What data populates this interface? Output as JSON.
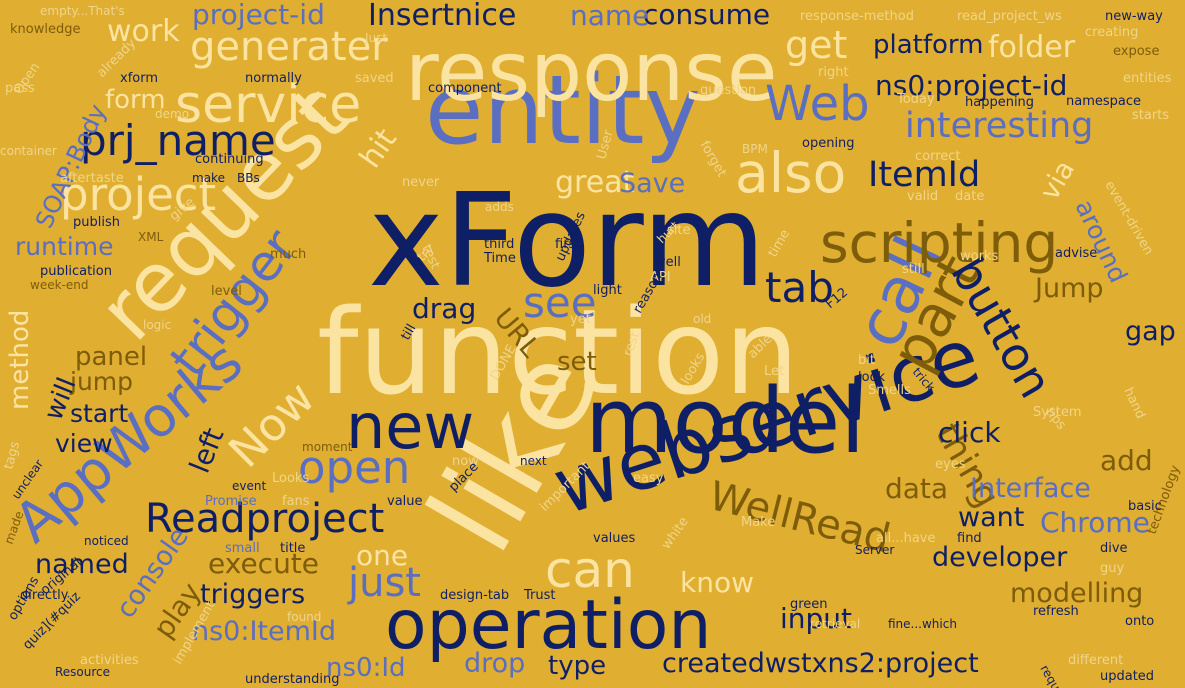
{
  "cloud": {
    "background": "#e0ae31",
    "palette": {
      "navy": "#0f1f66",
      "blue": "#5a6ec2",
      "cream": "#fbe4a1",
      "olive": "#7d5c0a",
      "light": "#f0d58a"
    },
    "words": [
      {
        "t": "xForm",
        "c": "navy"
      },
      {
        "t": "function",
        "c": "cream"
      },
      {
        "t": "entity",
        "c": "blue"
      },
      {
        "t": "response",
        "c": "cream"
      },
      {
        "t": "model",
        "c": "navy"
      },
      {
        "t": "like",
        "c": "cream"
      },
      {
        "t": "webservice",
        "c": "navy"
      },
      {
        "t": "operation",
        "c": "navy"
      },
      {
        "t": "request",
        "c": "cream"
      },
      {
        "t": "AppWorks",
        "c": "blue"
      },
      {
        "t": "service",
        "c": "cream"
      },
      {
        "t": "call",
        "c": "blue"
      },
      {
        "t": "scripting",
        "c": "olive"
      },
      {
        "t": "new",
        "c": "navy"
      },
      {
        "t": "trigger",
        "c": "blue"
      },
      {
        "t": "part",
        "c": "olive"
      },
      {
        "t": "button",
        "c": "navy"
      },
      {
        "t": "Web",
        "c": "blue"
      },
      {
        "t": "also",
        "c": "cream"
      },
      {
        "t": "open",
        "c": "blue"
      },
      {
        "t": "WellRead",
        "c": "olive"
      },
      {
        "t": "Readproject",
        "c": "navy"
      },
      {
        "t": "can",
        "c": "cream"
      },
      {
        "t": "prj_name",
        "c": "navy"
      },
      {
        "t": "project",
        "c": "cream"
      },
      {
        "t": "generater",
        "c": "cream"
      },
      {
        "t": "interesting",
        "c": "blue"
      },
      {
        "t": "ns0:project-id",
        "c": "navy"
      },
      {
        "t": "ItemId",
        "c": "navy"
      },
      {
        "t": "just",
        "c": "blue"
      },
      {
        "t": "Now",
        "c": "cream"
      },
      {
        "t": "tab",
        "c": "navy"
      },
      {
        "t": "see",
        "c": "blue"
      },
      {
        "t": "thing",
        "c": "olive"
      },
      {
        "t": "get",
        "c": "cream"
      },
      {
        "t": "project-id",
        "c": "blue"
      },
      {
        "t": "platform",
        "c": "navy"
      },
      {
        "t": "folder",
        "c": "cream"
      },
      {
        "t": "Insertnice",
        "c": "navy"
      },
      {
        "t": "consume",
        "c": "navy"
      },
      {
        "t": "name",
        "c": "blue"
      },
      {
        "t": "work",
        "c": "cream"
      },
      {
        "t": "form",
        "c": "cream"
      },
      {
        "t": "hit",
        "c": "cream"
      },
      {
        "t": "great",
        "c": "cream"
      },
      {
        "t": "Save",
        "c": "blue"
      },
      {
        "t": "via",
        "c": "cream"
      },
      {
        "t": "around",
        "c": "blue"
      },
      {
        "t": "SOAP:Body",
        "c": "blue"
      },
      {
        "t": "runtime",
        "c": "blue"
      },
      {
        "t": "drag",
        "c": "navy"
      },
      {
        "t": "URL",
        "c": "olive"
      },
      {
        "t": "Jump",
        "c": "olive"
      },
      {
        "t": "gap",
        "c": "navy"
      },
      {
        "t": "panel",
        "c": "olive"
      },
      {
        "t": "set",
        "c": "olive"
      },
      {
        "t": "method",
        "c": "cream"
      },
      {
        "t": "jump",
        "c": "olive"
      },
      {
        "t": "will",
        "c": "navy"
      },
      {
        "t": "start",
        "c": "navy"
      },
      {
        "t": "view",
        "c": "navy"
      },
      {
        "t": "left",
        "c": "navy"
      },
      {
        "t": "click",
        "c": "navy"
      },
      {
        "t": "add",
        "c": "olive"
      },
      {
        "t": "data",
        "c": "olive"
      },
      {
        "t": "Interface",
        "c": "blue"
      },
      {
        "t": "want",
        "c": "navy"
      },
      {
        "t": "Chrome",
        "c": "blue"
      },
      {
        "t": "developer",
        "c": "navy"
      },
      {
        "t": "one",
        "c": "cream"
      },
      {
        "t": "execute",
        "c": "olive"
      },
      {
        "t": "named",
        "c": "navy"
      },
      {
        "t": "triggers",
        "c": "navy"
      },
      {
        "t": "console",
        "c": "blue"
      },
      {
        "t": "play",
        "c": "olive"
      },
      {
        "t": "know",
        "c": "cream"
      },
      {
        "t": "modelling",
        "c": "olive"
      },
      {
        "t": "input",
        "c": "navy"
      },
      {
        "t": "ns0:ItemId",
        "c": "blue"
      },
      {
        "t": "drop",
        "c": "blue"
      },
      {
        "t": "type",
        "c": "navy"
      },
      {
        "t": "createdwstxns2:project",
        "c": "navy"
      },
      {
        "t": "ns0:Id",
        "c": "blue"
      },
      {
        "t": "empty...That's",
        "c": "light"
      },
      {
        "t": "knowledge",
        "c": "olive"
      },
      {
        "t": "Just",
        "c": "light"
      },
      {
        "t": "response-method",
        "c": "light"
      },
      {
        "t": "read_project_ws",
        "c": "light"
      },
      {
        "t": "new-way",
        "c": "navy"
      },
      {
        "t": "creating",
        "c": "light"
      },
      {
        "t": "expose",
        "c": "olive"
      },
      {
        "t": "entities",
        "c": "light"
      },
      {
        "t": "namespace",
        "c": "navy"
      },
      {
        "t": "starts",
        "c": "light"
      },
      {
        "t": "already",
        "c": "light"
      },
      {
        "t": "xform",
        "c": "navy"
      },
      {
        "t": "normally",
        "c": "navy"
      },
      {
        "t": "saved",
        "c": "light"
      },
      {
        "t": "component",
        "c": "navy"
      },
      {
        "t": "question",
        "c": "light"
      },
      {
        "t": "right",
        "c": "light"
      },
      {
        "t": "pass",
        "c": "light"
      },
      {
        "t": "Open",
        "c": "light"
      },
      {
        "t": "demo",
        "c": "light"
      },
      {
        "t": "Today",
        "c": "light"
      },
      {
        "t": "happening",
        "c": "navy"
      },
      {
        "t": "container",
        "c": "light"
      },
      {
        "t": "forget",
        "c": "light"
      },
      {
        "t": "opening",
        "c": "navy"
      },
      {
        "t": "continuing",
        "c": "navy"
      },
      {
        "t": "BPM",
        "c": "light"
      },
      {
        "t": "correct",
        "c": "light"
      },
      {
        "t": "User",
        "c": "light"
      },
      {
        "t": "aftertaste",
        "c": "light"
      },
      {
        "t": "make",
        "c": "navy"
      },
      {
        "t": "BBs",
        "c": "navy"
      },
      {
        "t": "never",
        "c": "light"
      },
      {
        "t": "event-driven",
        "c": "light"
      },
      {
        "t": "publish",
        "c": "navy"
      },
      {
        "t": "adds",
        "c": "light"
      },
      {
        "t": "give",
        "c": "light"
      },
      {
        "t": "valid",
        "c": "light"
      },
      {
        "t": "date",
        "c": "light"
      },
      {
        "t": "XML",
        "c": "olive"
      },
      {
        "t": "test",
        "c": "light"
      },
      {
        "t": "third",
        "c": "navy"
      },
      {
        "t": "first",
        "c": "navy"
      },
      {
        "t": "site",
        "c": "light"
      },
      {
        "t": "much",
        "c": "olive"
      },
      {
        "t": "try",
        "c": "light"
      },
      {
        "t": "Time",
        "c": "navy"
      },
      {
        "t": "well",
        "c": "navy"
      },
      {
        "t": "hurt",
        "c": "light"
      },
      {
        "t": "time",
        "c": "light"
      },
      {
        "t": "works",
        "c": "light"
      },
      {
        "t": "advise",
        "c": "navy"
      },
      {
        "t": "updates",
        "c": "navy"
      },
      {
        "t": "API",
        "c": "light"
      },
      {
        "t": "still",
        "c": "light"
      },
      {
        "t": "publication",
        "c": "navy"
      },
      {
        "t": "week-end",
        "c": "olive"
      },
      {
        "t": "light",
        "c": "navy"
      },
      {
        "t": "F12",
        "c": "navy"
      },
      {
        "t": "level",
        "c": "olive"
      },
      {
        "t": "logic",
        "c": "light"
      },
      {
        "t": "reason",
        "c": "navy"
      },
      {
        "t": "old",
        "c": "light"
      },
      {
        "t": "yet",
        "c": "light"
      },
      {
        "t": "till",
        "c": "navy"
      },
      {
        "t": "rest",
        "c": "light"
      },
      {
        "t": "able",
        "c": "light"
      },
      {
        "t": "Let",
        "c": "light"
      },
      {
        "t": "bit",
        "c": "light"
      },
      {
        "t": "look",
        "c": "navy"
      },
      {
        "t": "Smells",
        "c": "light"
      },
      {
        "t": "trick",
        "c": "navy"
      },
      {
        "t": "hand",
        "c": "light"
      },
      {
        "t": "DONE",
        "c": "light"
      },
      {
        "t": "looks",
        "c": "light"
      },
      {
        "t": "tags",
        "c": "light"
      },
      {
        "t": "System",
        "c": "light"
      },
      {
        "t": "tips",
        "c": "light"
      },
      {
        "t": "moment",
        "c": "olive"
      },
      {
        "t": "now",
        "c": "light"
      },
      {
        "t": "next",
        "c": "navy"
      },
      {
        "t": "eyes",
        "c": "light"
      },
      {
        "t": "technology",
        "c": "olive"
      },
      {
        "t": "unclear",
        "c": "navy"
      },
      {
        "t": "Looks",
        "c": "light"
      },
      {
        "t": "place",
        "c": "navy"
      },
      {
        "t": "easy",
        "c": "light"
      },
      {
        "t": "event",
        "c": "navy"
      },
      {
        "t": "Promise",
        "c": "blue"
      },
      {
        "t": "fans",
        "c": "light"
      },
      {
        "t": "value",
        "c": "navy"
      },
      {
        "t": "basic",
        "c": "navy"
      },
      {
        "t": "made",
        "c": "olive"
      },
      {
        "t": "important",
        "c": "light"
      },
      {
        "t": "Make",
        "c": "light"
      },
      {
        "t": "noticed",
        "c": "navy"
      },
      {
        "t": "small",
        "c": "blue"
      },
      {
        "t": "title",
        "c": "navy"
      },
      {
        "t": "values",
        "c": "navy"
      },
      {
        "t": "find",
        "c": "navy"
      },
      {
        "t": "Server",
        "c": "navy"
      },
      {
        "t": "all...have",
        "c": "light"
      },
      {
        "t": "dive",
        "c": "navy"
      },
      {
        "t": "original",
        "c": "navy"
      },
      {
        "t": "white",
        "c": "light"
      },
      {
        "t": "guy",
        "c": "light"
      },
      {
        "t": "directly",
        "c": "navy"
      },
      {
        "t": "design-tab",
        "c": "navy"
      },
      {
        "t": "Trust",
        "c": "navy"
      },
      {
        "t": "options",
        "c": "navy"
      },
      {
        "t": "found",
        "c": "light"
      },
      {
        "t": "green",
        "c": "navy"
      },
      {
        "t": "refresh",
        "c": "navy"
      },
      {
        "t": "quiz](#quiz",
        "c": "navy"
      },
      {
        "t": "implement",
        "c": "light"
      },
      {
        "t": "retrieval",
        "c": "light"
      },
      {
        "t": "fine...which",
        "c": "navy"
      },
      {
        "t": "onto",
        "c": "navy"
      },
      {
        "t": "require",
        "c": "navy"
      },
      {
        "t": "activities",
        "c": "light"
      },
      {
        "t": "Resource",
        "c": "navy"
      },
      {
        "t": "understanding",
        "c": "navy"
      },
      {
        "t": "different",
        "c": "light"
      },
      {
        "t": "updated",
        "c": "navy"
      },
      {
        "t": "possible",
        "c": "light"
      }
    ]
  }
}
